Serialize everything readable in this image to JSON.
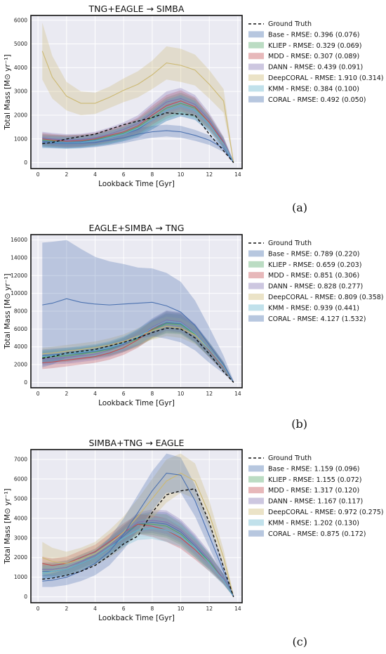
{
  "chart_data": [
    {
      "type": "line",
      "panel_label": "(a)",
      "title": "TNG+EAGLE → SIMBA",
      "xlabel": "Lookback Time [Gyr]",
      "ylabel": "Total Mass [M⊙ yr⁻¹]",
      "xlim": [
        -0.5,
        14.3
      ],
      "ylim": [
        -250,
        6200
      ],
      "xticks": [
        0,
        2,
        4,
        6,
        8,
        10,
        12,
        14
      ],
      "yticks": [
        0,
        1000,
        2000,
        3000,
        4000,
        5000,
        6000
      ],
      "grid": true,
      "legend_position": "right",
      "x": [
        0.3,
        1,
        2,
        3,
        4,
        5,
        6,
        7,
        8,
        9,
        10,
        11,
        12,
        13,
        13.7
      ],
      "ground_truth": {
        "name": "Ground Truth",
        "values": [
          800,
          850,
          1000,
          1100,
          1200,
          1400,
          1600,
          1750,
          1900,
          2100,
          2050,
          2000,
          1200,
          500,
          0
        ]
      },
      "series": [
        {
          "name": "Base - RMSE: 0.396 (0.076)",
          "color": "#4c72b0",
          "values": [
            900,
            880,
            850,
            880,
            950,
            1050,
            1200,
            1400,
            1800,
            2200,
            2400,
            2200,
            1600,
            800,
            0
          ],
          "spread": [
            250,
            250,
            250,
            250,
            250,
            280,
            300,
            350,
            400,
            450,
            450,
            400,
            300,
            200,
            50
          ]
        },
        {
          "name": "KLIEP - RMSE: 0.329 (0.069)",
          "color": "#55a868",
          "values": [
            950,
            920,
            900,
            920,
            980,
            1100,
            1250,
            1500,
            1900,
            2300,
            2500,
            2300,
            1700,
            850,
            0
          ],
          "spread": [
            250,
            250,
            250,
            250,
            250,
            280,
            300,
            350,
            400,
            450,
            450,
            400,
            300,
            200,
            50
          ]
        },
        {
          "name": "MDD - RMSE: 0.307 (0.089)",
          "color": "#c44e52",
          "values": [
            1000,
            950,
            900,
            930,
            1000,
            1150,
            1300,
            1550,
            2000,
            2400,
            2600,
            2350,
            1700,
            850,
            0
          ],
          "spread": [
            250,
            250,
            250,
            250,
            250,
            280,
            300,
            350,
            400,
            450,
            450,
            400,
            300,
            200,
            50
          ]
        },
        {
          "name": "DANN - RMSE: 0.439 (0.091)",
          "color": "#8172b2",
          "values": [
            1050,
            1000,
            950,
            970,
            1050,
            1200,
            1400,
            1650,
            2100,
            2550,
            2700,
            2450,
            1800,
            900,
            0
          ],
          "spread": [
            250,
            250,
            250,
            250,
            250,
            280,
            300,
            350,
            400,
            450,
            450,
            400,
            300,
            200,
            50
          ]
        },
        {
          "name": "DeepCORAL - RMSE: 1.910 (0.314)",
          "color": "#ccb974",
          "values": [
            4700,
            3600,
            2800,
            2500,
            2500,
            2750,
            3050,
            3300,
            3700,
            4200,
            4100,
            3900,
            3300,
            2600,
            0
          ],
          "spread": [
            1200,
            900,
            600,
            500,
            450,
            450,
            500,
            550,
            600,
            700,
            700,
            650,
            600,
            500,
            100
          ]
        },
        {
          "name": "KMM - RMSE: 0.384 (0.100)",
          "color": "#64b5cd",
          "values": [
            850,
            850,
            830,
            850,
            920,
            1050,
            1200,
            1450,
            1800,
            2200,
            2400,
            2200,
            1600,
            800,
            0
          ],
          "spread": [
            250,
            250,
            250,
            250,
            250,
            280,
            300,
            350,
            400,
            450,
            450,
            400,
            300,
            200,
            50
          ]
        },
        {
          "name": "CORAL - RMSE: 0.492 (0.050)",
          "color": "#4c72b0",
          "values": [
            850,
            820,
            800,
            820,
            850,
            950,
            1050,
            1200,
            1300,
            1350,
            1300,
            1150,
            950,
            600,
            0
          ],
          "spread": [
            200,
            200,
            200,
            200,
            200,
            220,
            230,
            250,
            250,
            250,
            250,
            230,
            200,
            150,
            50
          ]
        }
      ]
    },
    {
      "type": "line",
      "panel_label": "(b)",
      "title": "EAGLE+SIMBA → TNG",
      "xlabel": "Lookback Time [Gyr]",
      "ylabel": "Total Mass [M⊙ yr⁻¹]",
      "xlim": [
        -0.5,
        14.3
      ],
      "ylim": [
        -600,
        16600
      ],
      "xticks": [
        0,
        2,
        4,
        6,
        8,
        10,
        12,
        14
      ],
      "yticks": [
        0,
        2000,
        4000,
        6000,
        8000,
        10000,
        12000,
        14000,
        16000
      ],
      "grid": true,
      "legend_position": "right",
      "x": [
        0.3,
        1,
        2,
        3,
        4,
        5,
        6,
        7,
        8,
        9,
        10,
        11,
        12,
        13,
        13.7
      ],
      "ground_truth": {
        "name": "Ground Truth",
        "values": [
          2700,
          2900,
          3300,
          3500,
          3700,
          4100,
          4500,
          5000,
          5600,
          6100,
          6000,
          5000,
          3200,
          1200,
          0
        ]
      },
      "series": [
        {
          "name": "Base - RMSE: 0.789 (0.220)",
          "color": "#4c72b0",
          "values": [
            3000,
            3100,
            3200,
            3300,
            3500,
            3800,
            4300,
            5000,
            6000,
            6700,
            6600,
            5500,
            3700,
            1800,
            0
          ],
          "spread": [
            700,
            700,
            700,
            700,
            700,
            750,
            800,
            900,
            1000,
            1100,
            1100,
            1000,
            800,
            500,
            100
          ]
        },
        {
          "name": "KLIEP - RMSE: 0.659 (0.203)",
          "color": "#55a868",
          "values": [
            2800,
            2900,
            3000,
            3200,
            3400,
            3700,
            4200,
            4900,
            5900,
            6600,
            6500,
            5400,
            3600,
            1700,
            0
          ],
          "spread": [
            700,
            700,
            700,
            700,
            700,
            750,
            800,
            900,
            1000,
            1100,
            1100,
            1000,
            800,
            500,
            100
          ]
        },
        {
          "name": "MDD - RMSE: 0.851 (0.306)",
          "color": "#c44e52",
          "values": [
            2200,
            2300,
            2500,
            2700,
            2900,
            3300,
            3900,
            4800,
            6000,
            6900,
            6700,
            5500,
            3600,
            1700,
            0
          ],
          "spread": [
            700,
            700,
            700,
            700,
            700,
            750,
            800,
            900,
            1000,
            1100,
            1100,
            1000,
            800,
            500,
            100
          ]
        },
        {
          "name": "DANN - RMSE: 0.828 (0.277)",
          "color": "#8172b2",
          "values": [
            2600,
            2700,
            2800,
            3000,
            3200,
            3600,
            4200,
            5100,
            6200,
            7000,
            6800,
            5600,
            3700,
            1800,
            0
          ],
          "spread": [
            700,
            700,
            700,
            700,
            700,
            750,
            800,
            900,
            1000,
            1100,
            1100,
            1000,
            800,
            500,
            100
          ]
        },
        {
          "name": "DeepCORAL - RMSE: 0.809 (0.358)",
          "color": "#ccb974",
          "values": [
            3200,
            3300,
            3500,
            3700,
            3900,
            4200,
            4600,
            5200,
            5800,
            6300,
            6100,
            5300,
            3700,
            1800,
            0
          ],
          "spread": [
            700,
            700,
            700,
            700,
            700,
            750,
            800,
            900,
            1000,
            1100,
            1100,
            1000,
            800,
            500,
            100
          ]
        },
        {
          "name": "KMM - RMSE: 0.939 (0.441)",
          "color": "#64b5cd",
          "values": [
            2900,
            3000,
            3200,
            3400,
            3600,
            3900,
            4400,
            5100,
            6100,
            6900,
            6700,
            5500,
            3700,
            1800,
            0
          ],
          "spread": [
            700,
            700,
            700,
            700,
            700,
            750,
            800,
            900,
            1000,
            1100,
            1100,
            1000,
            800,
            500,
            100
          ]
        },
        {
          "name": "CORAL - RMSE: 4.127 (1.532)",
          "color": "#4c72b0",
          "values": [
            8700,
            8900,
            9400,
            9000,
            8800,
            8700,
            8800,
            8900,
            9000,
            8600,
            7900,
            6400,
            4200,
            2000,
            0
          ],
          "spread": [
            7000,
            6900,
            6600,
            6000,
            5300,
            4900,
            4500,
            4000,
            3800,
            3700,
            3400,
            2800,
            2000,
            1000,
            200
          ]
        }
      ]
    },
    {
      "type": "line",
      "panel_label": "(c)",
      "title": "SIMBA+TNG → EAGLE",
      "xlabel": "Lookback Time [Gyr]",
      "ylabel": "Total Mass [M⊙ yr⁻¹]",
      "xlim": [
        -0.5,
        14.3
      ],
      "ylim": [
        -300,
        7500
      ],
      "xticks": [
        0,
        2,
        4,
        6,
        8,
        10,
        12,
        14
      ],
      "yticks": [
        0,
        1000,
        2000,
        3000,
        4000,
        5000,
        6000,
        7000
      ],
      "grid": true,
      "legend_position": "right",
      "x": [
        0.3,
        1,
        2,
        3,
        4,
        5,
        6,
        7,
        8,
        9,
        10,
        11,
        12,
        13,
        13.7
      ],
      "ground_truth": {
        "name": "Ground Truth",
        "values": [
          900,
          950,
          1100,
          1300,
          1600,
          2100,
          2700,
          3100,
          4300,
          5200,
          5400,
          5500,
          3800,
          1500,
          0
        ]
      },
      "series": [
        {
          "name": "Base - RMSE: 1.159 (0.096)",
          "color": "#4c72b0",
          "values": [
            1300,
            1300,
            1400,
            1700,
            2000,
            2500,
            3100,
            3700,
            3800,
            3700,
            3300,
            2600,
            1800,
            900,
            0
          ],
          "spread": [
            350,
            350,
            350,
            350,
            350,
            400,
            450,
            500,
            550,
            600,
            550,
            500,
            400,
            250,
            50
          ]
        },
        {
          "name": "KLIEP - RMSE: 1.155 (0.072)",
          "color": "#55a868",
          "values": [
            1400,
            1400,
            1500,
            1800,
            2100,
            2600,
            3200,
            3700,
            3700,
            3600,
            3200,
            2500,
            1800,
            900,
            0
          ],
          "spread": [
            350,
            350,
            350,
            350,
            350,
            400,
            450,
            500,
            550,
            600,
            550,
            500,
            400,
            250,
            50
          ]
        },
        {
          "name": "MDD - RMSE: 1.317 (0.120)",
          "color": "#c44e52",
          "values": [
            1700,
            1600,
            1700,
            2000,
            2300,
            2800,
            3300,
            3700,
            3600,
            3400,
            3000,
            2400,
            1700,
            900,
            0
          ],
          "spread": [
            350,
            350,
            350,
            350,
            350,
            400,
            450,
            500,
            550,
            600,
            550,
            500,
            400,
            250,
            50
          ]
        },
        {
          "name": "DANN - RMSE: 1.167 (0.117)",
          "color": "#8172b2",
          "values": [
            1400,
            1400,
            1500,
            1800,
            2100,
            2600,
            3200,
            3800,
            3900,
            3800,
            3400,
            2700,
            1900,
            900,
            0
          ],
          "spread": [
            350,
            350,
            350,
            350,
            350,
            400,
            450,
            500,
            550,
            600,
            550,
            500,
            400,
            250,
            50
          ]
        },
        {
          "name": "DeepCORAL - RMSE: 0.972 (0.275)",
          "color": "#ccb974",
          "values": [
            2000,
            1800,
            1700,
            1900,
            2200,
            2700,
            3300,
            4100,
            5000,
            5900,
            6300,
            5900,
            4200,
            2000,
            0
          ],
          "spread": [
            800,
            700,
            600,
            600,
            600,
            700,
            800,
            900,
            1000,
            1100,
            1000,
            900,
            700,
            400,
            100
          ]
        },
        {
          "name": "KMM - RMSE: 1.202 (0.130)",
          "color": "#64b5cd",
          "values": [
            1200,
            1300,
            1400,
            1700,
            2000,
            2500,
            3000,
            3400,
            3500,
            3400,
            3100,
            2500,
            1700,
            850,
            0
          ],
          "spread": [
            350,
            350,
            350,
            350,
            350,
            400,
            450,
            500,
            550,
            600,
            550,
            500,
            400,
            250,
            50
          ]
        },
        {
          "name": "CORAL - RMSE: 0.875 (0.172)",
          "color": "#4c72b0",
          "values": [
            800,
            850,
            1000,
            1300,
            1700,
            2300,
            3200,
            4300,
            5400,
            6300,
            6200,
            4900,
            3100,
            1300,
            0
          ],
          "spread": [
            300,
            350,
            400,
            500,
            600,
            700,
            800,
            900,
            1000,
            1000,
            900,
            800,
            600,
            350,
            50
          ]
        }
      ]
    }
  ]
}
